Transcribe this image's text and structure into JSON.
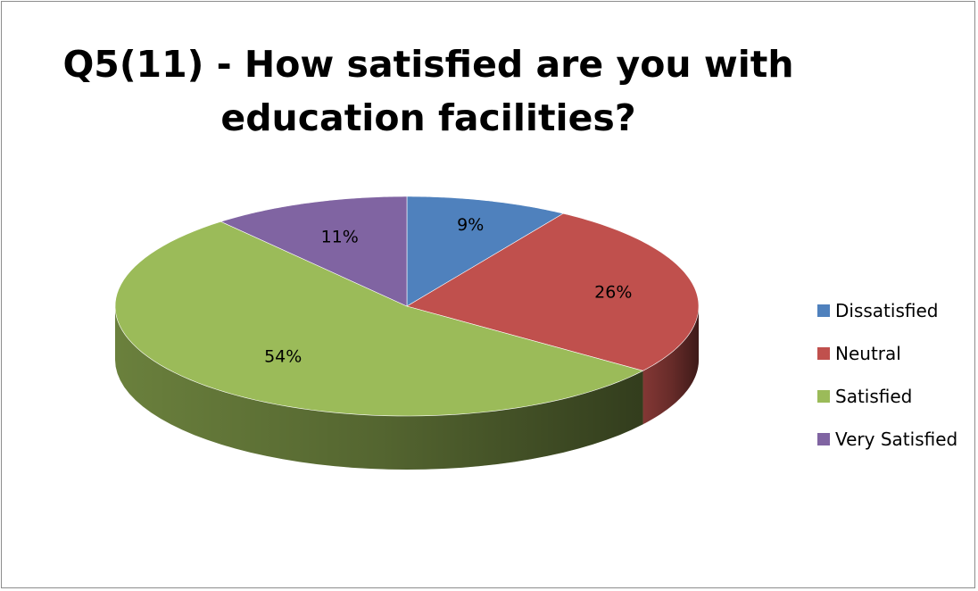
{
  "chart_data": {
    "type": "pie",
    "title": "Q5(11) - How satisfied are you with education facilities?",
    "title_lines": [
      "Q5(11) - How satisfied are you with",
      "education facilities?"
    ],
    "style": "3d",
    "legend_position": "right",
    "categories": [
      "Dissatisfied",
      "Neutral",
      "Satisfied",
      "Very Satisfied"
    ],
    "values": [
      9,
      26,
      54,
      11
    ],
    "data_labels": [
      "9%",
      "26%",
      "54%",
      "11%"
    ],
    "colors": [
      "#4f81bd",
      "#c0504d",
      "#9bbb59",
      "#8064a2"
    ]
  }
}
